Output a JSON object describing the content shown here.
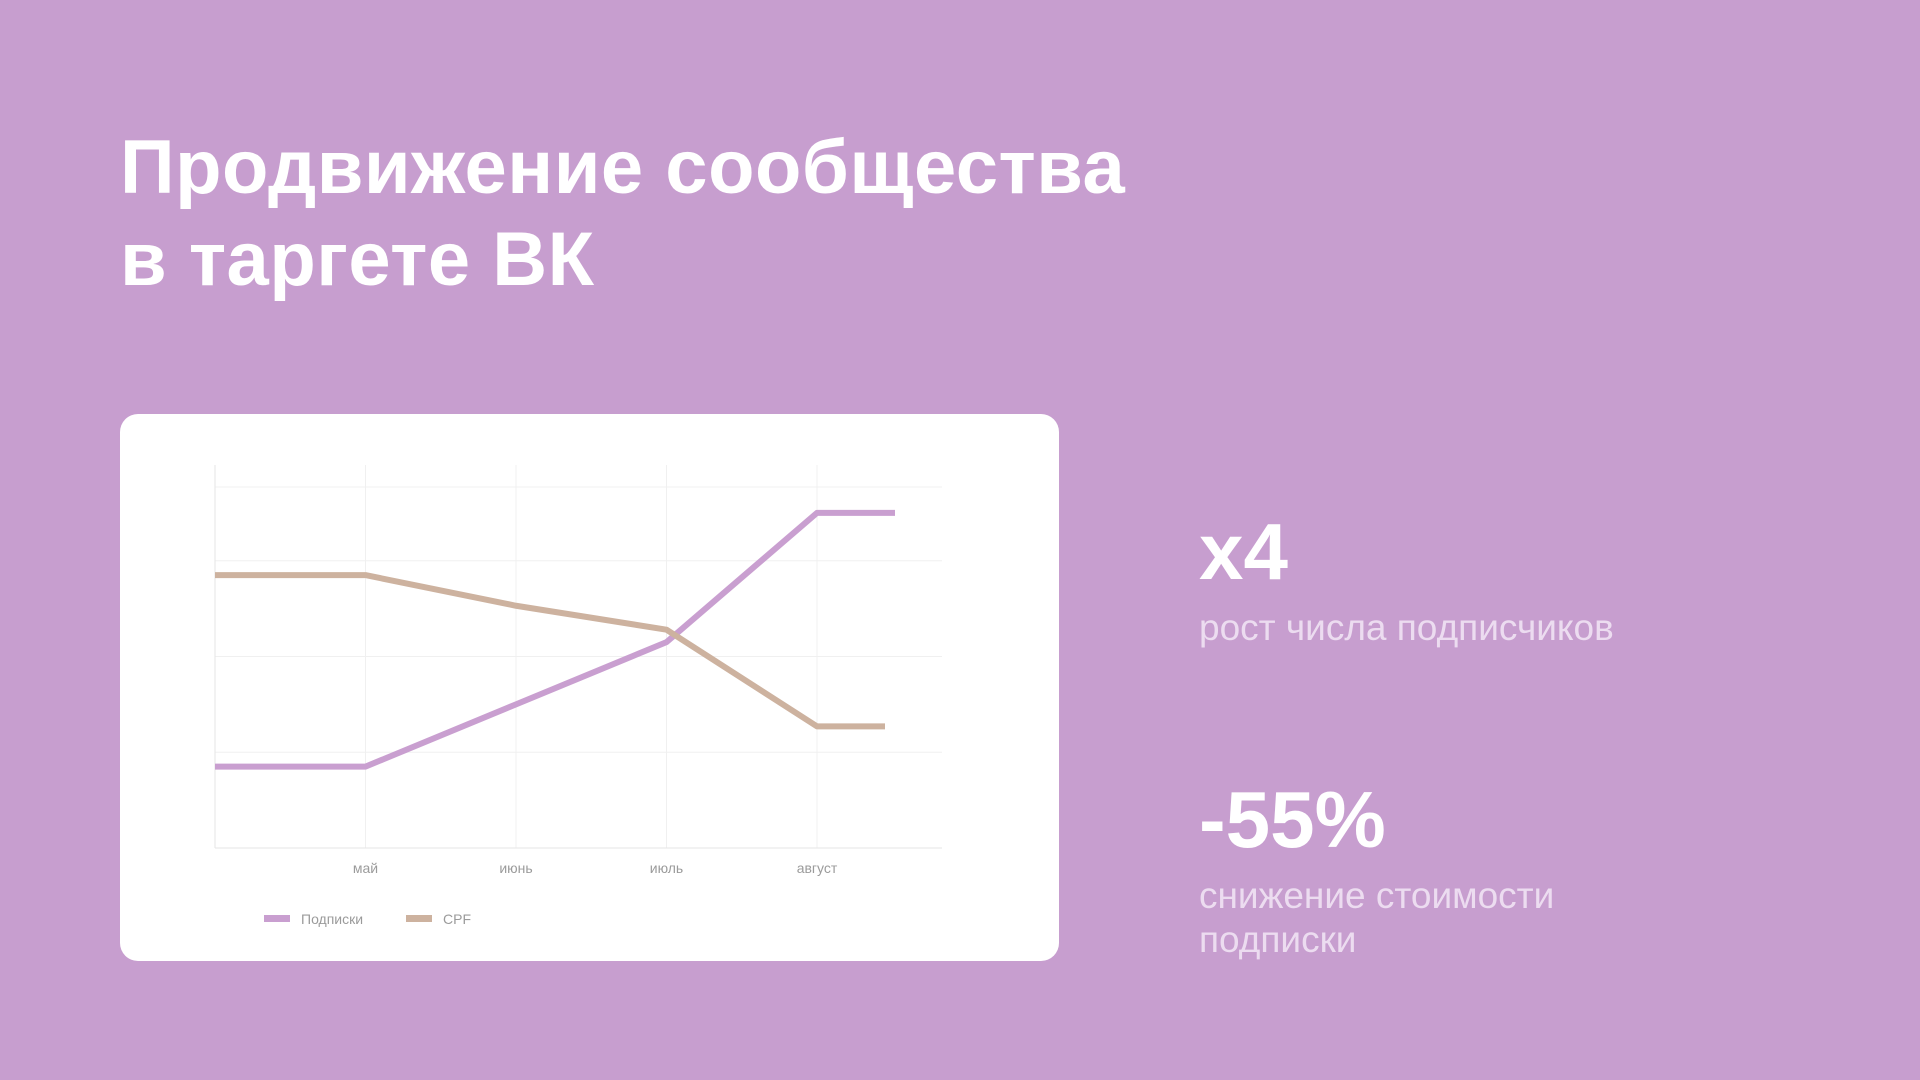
{
  "slide": {
    "title_line1": "Продвижение сообщества",
    "title_line2": "в таргете ВК",
    "background_color": "#c79ecf"
  },
  "stats": [
    {
      "value": "x4",
      "caption": "рост числа подписчиков"
    },
    {
      "value": "-55%",
      "caption": "снижение стоимости подписки"
    }
  ],
  "chart_data": {
    "type": "line",
    "title": "",
    "xlabel": "",
    "ylabel": "",
    "x": [
      "",
      "май",
      "июнь",
      "июль",
      "август"
    ],
    "ylim": [
      0,
      4
    ],
    "grid": true,
    "legend_position": "bottom-left",
    "series": [
      {
        "name": "Подписки",
        "color": "#c99fd0",
        "values": [
          0.85,
          0.85,
          1.5,
          2.15,
          3.5
        ]
      },
      {
        "name": "CPF",
        "color": "#cdb29f",
        "values": [
          2.85,
          2.85,
          2.53,
          2.28,
          1.27
        ]
      }
    ]
  }
}
